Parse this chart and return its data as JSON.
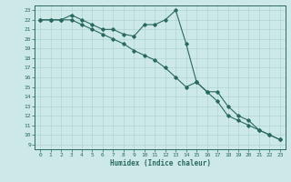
{
  "xlabel": "Humidex (Indice chaleur)",
  "xlim": [
    -0.5,
    23.5
  ],
  "ylim": [
    8.5,
    23.5
  ],
  "xticks": [
    0,
    1,
    2,
    3,
    4,
    5,
    6,
    7,
    8,
    9,
    10,
    11,
    12,
    13,
    14,
    15,
    16,
    17,
    18,
    19,
    20,
    21,
    22,
    23
  ],
  "yticks": [
    9,
    10,
    11,
    12,
    13,
    14,
    15,
    16,
    17,
    18,
    19,
    20,
    21,
    22,
    23
  ],
  "bg_color": "#cce9e7",
  "grid_color": "#b0d4d2",
  "line_color": "#2a6860",
  "line1_x": [
    0,
    1,
    2,
    3,
    4,
    5,
    6,
    7,
    8,
    9,
    10,
    11,
    12,
    13,
    14,
    15,
    16,
    17,
    18,
    19,
    20,
    21,
    22,
    23
  ],
  "line1_y": [
    22.0,
    22.0,
    22.0,
    22.5,
    22.0,
    21.5,
    21.0,
    21.0,
    20.5,
    20.3,
    21.5,
    21.5,
    22.0,
    23.0,
    19.5,
    15.5,
    14.5,
    14.5,
    13.0,
    12.0,
    11.5,
    10.5,
    10.0,
    9.5
  ],
  "line2_x": [
    0,
    1,
    2,
    3,
    4,
    5,
    6,
    7,
    8,
    9,
    10,
    11,
    12,
    13,
    14,
    15,
    16,
    17,
    18,
    19,
    20,
    21,
    22,
    23
  ],
  "line2_y": [
    22.0,
    22.0,
    22.0,
    22.0,
    21.5,
    21.0,
    20.5,
    20.0,
    19.5,
    18.8,
    18.3,
    17.8,
    17.0,
    16.0,
    15.0,
    15.5,
    14.5,
    13.5,
    12.0,
    11.5,
    11.0,
    10.5,
    10.0,
    9.5
  ]
}
